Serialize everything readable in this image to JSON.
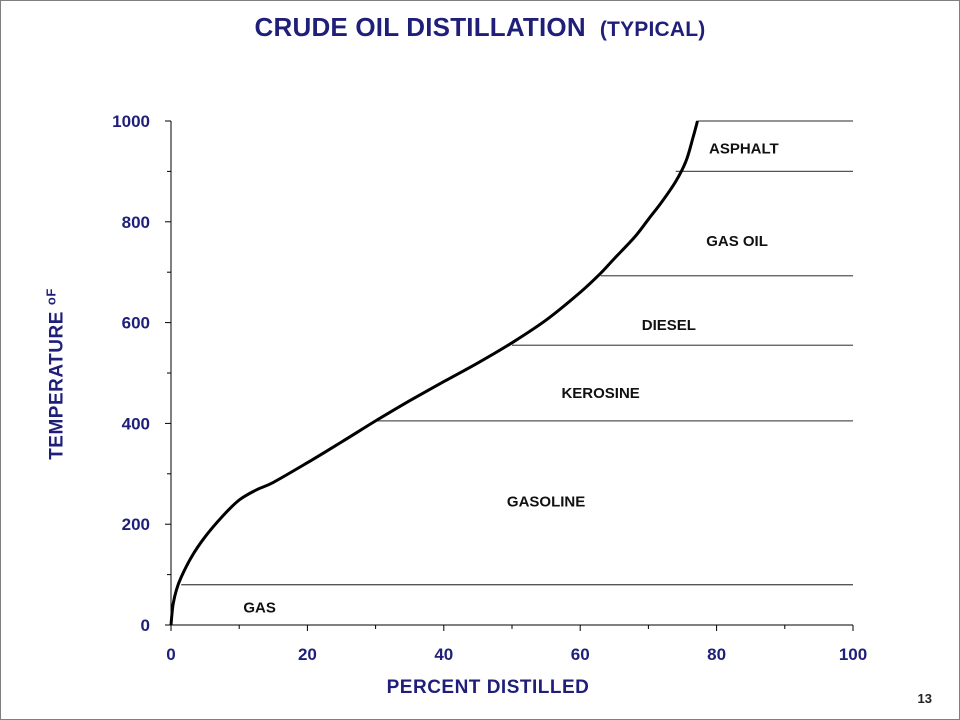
{
  "page": {
    "number": "13"
  },
  "chart_data": {
    "type": "line",
    "title": "CRUDE OIL DISTILLATION",
    "subtitle": "(TYPICAL)",
    "xlabel": "PERCENT DISTILLED",
    "ylabel": "TEMPERATURE",
    "ylabel_unit": "oF",
    "xlim": [
      0,
      100
    ],
    "ylim": [
      0,
      1000
    ],
    "x_ticks": [
      0,
      20,
      40,
      60,
      80,
      100
    ],
    "y_ticks": [
      0,
      200,
      400,
      600,
      800,
      1000
    ],
    "grid": false,
    "series": [
      {
        "x": [
          0,
          0.3,
          0.8,
          1.5,
          3,
          5,
          7.5,
          10,
          12.5,
          15,
          20,
          25,
          30,
          35,
          40,
          45,
          50,
          55,
          60,
          63,
          65,
          68,
          70,
          72,
          74,
          75.5,
          76.5,
          77.2
        ],
        "y": [
          0,
          40,
          70,
          95,
          135,
          175,
          215,
          248,
          268,
          283,
          322,
          363,
          405,
          445,
          483,
          520,
          560,
          605,
          660,
          698,
          727,
          770,
          805,
          840,
          880,
          920,
          965,
          1000
        ],
        "color": "#000000"
      }
    ],
    "cut_lines": [
      {
        "y": 80,
        "x_start": 1.5
      },
      {
        "y": 405,
        "x_start": 30
      },
      {
        "y": 555,
        "x_start": 50
      },
      {
        "y": 693,
        "x_start": 63
      },
      {
        "y": 900,
        "x_start": 74
      },
      {
        "y": 1000,
        "x_start": 77.2
      }
    ],
    "fractions": [
      {
        "label": "GAS",
        "x": 13,
        "y": 35
      },
      {
        "label": "GASOLINE",
        "x": 55,
        "y": 245
      },
      {
        "label": "KEROSINE",
        "x": 63,
        "y": 460
      },
      {
        "label": "DIESEL",
        "x": 73,
        "y": 595
      },
      {
        "label": "GAS OIL",
        "x": 83,
        "y": 762
      },
      {
        "label": "ASPHALT",
        "x": 84,
        "y": 945
      }
    ]
  }
}
